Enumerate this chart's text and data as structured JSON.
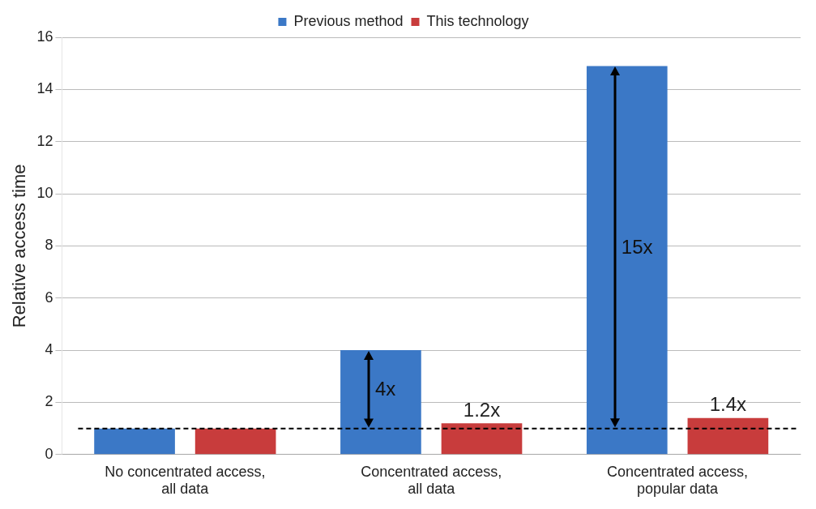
{
  "chart_data": {
    "type": "bar",
    "ylabel": "Relative access time",
    "categories": [
      "No concentrated access, all data",
      "Concentrated access, all data",
      "Concentrated access, popular data"
    ],
    "series": [
      {
        "name": "Previous method",
        "color": "#3b78c6",
        "values": [
          1,
          4,
          14.9
        ]
      },
      {
        "name": "This technology",
        "color": "#c83c3c",
        "values": [
          1,
          1.2,
          1.4
        ],
        "value_labels": [
          null,
          "1.2x",
          "1.4x"
        ]
      }
    ],
    "ylim": [
      0,
      16
    ],
    "yticks": [
      0,
      2,
      4,
      6,
      8,
      10,
      12,
      14,
      16
    ],
    "grid": "y",
    "legend": "top",
    "ref_lines": [
      {
        "axis": "y",
        "value": 1,
        "line_style": "dashed",
        "color": "#000000"
      }
    ],
    "annotations": [
      "4x",
      "15x"
    ]
  }
}
